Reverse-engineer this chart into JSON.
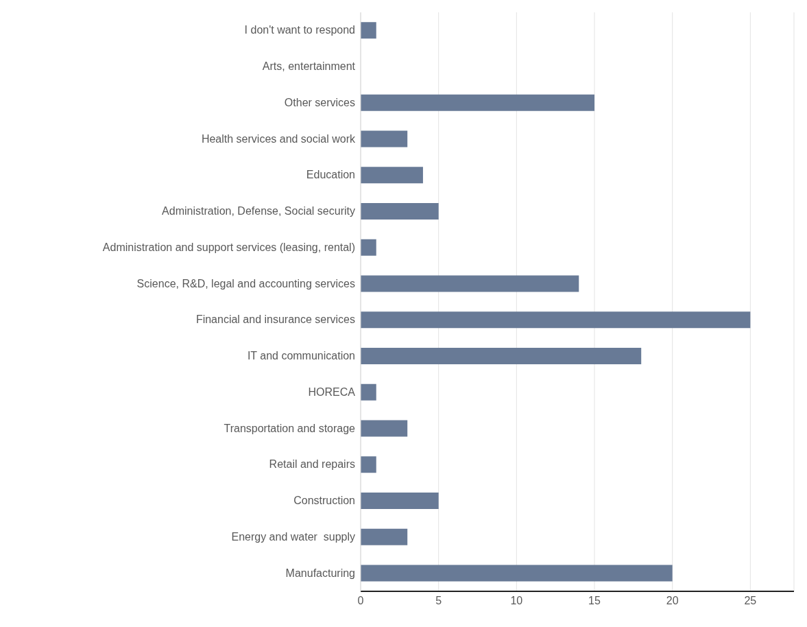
{
  "chart_data": {
    "type": "bar",
    "orientation": "horizontal",
    "categories": [
      "I don't want to respond",
      "Arts, entertainment",
      "Other services",
      "Health services and social work",
      "Education",
      "Administration, Defense, Social security",
      "Administration and support services (leasing, rental)",
      "Science, R&D, legal and accounting services",
      "Financial and insurance services",
      "IT and communication",
      "HORECA",
      "Transportation and storage",
      "Retail and repairs",
      "Construction",
      "Energy and water  supply",
      "Manufacturing"
    ],
    "values": [
      1,
      0,
      15,
      3,
      4,
      5,
      1,
      14,
      25,
      18,
      1,
      3,
      1,
      5,
      3,
      20
    ],
    "color": "#687a96",
    "xlim": [
      0,
      27.8
    ],
    "xticks": [
      0,
      5,
      10,
      15,
      20,
      25
    ],
    "grid": "x"
  }
}
